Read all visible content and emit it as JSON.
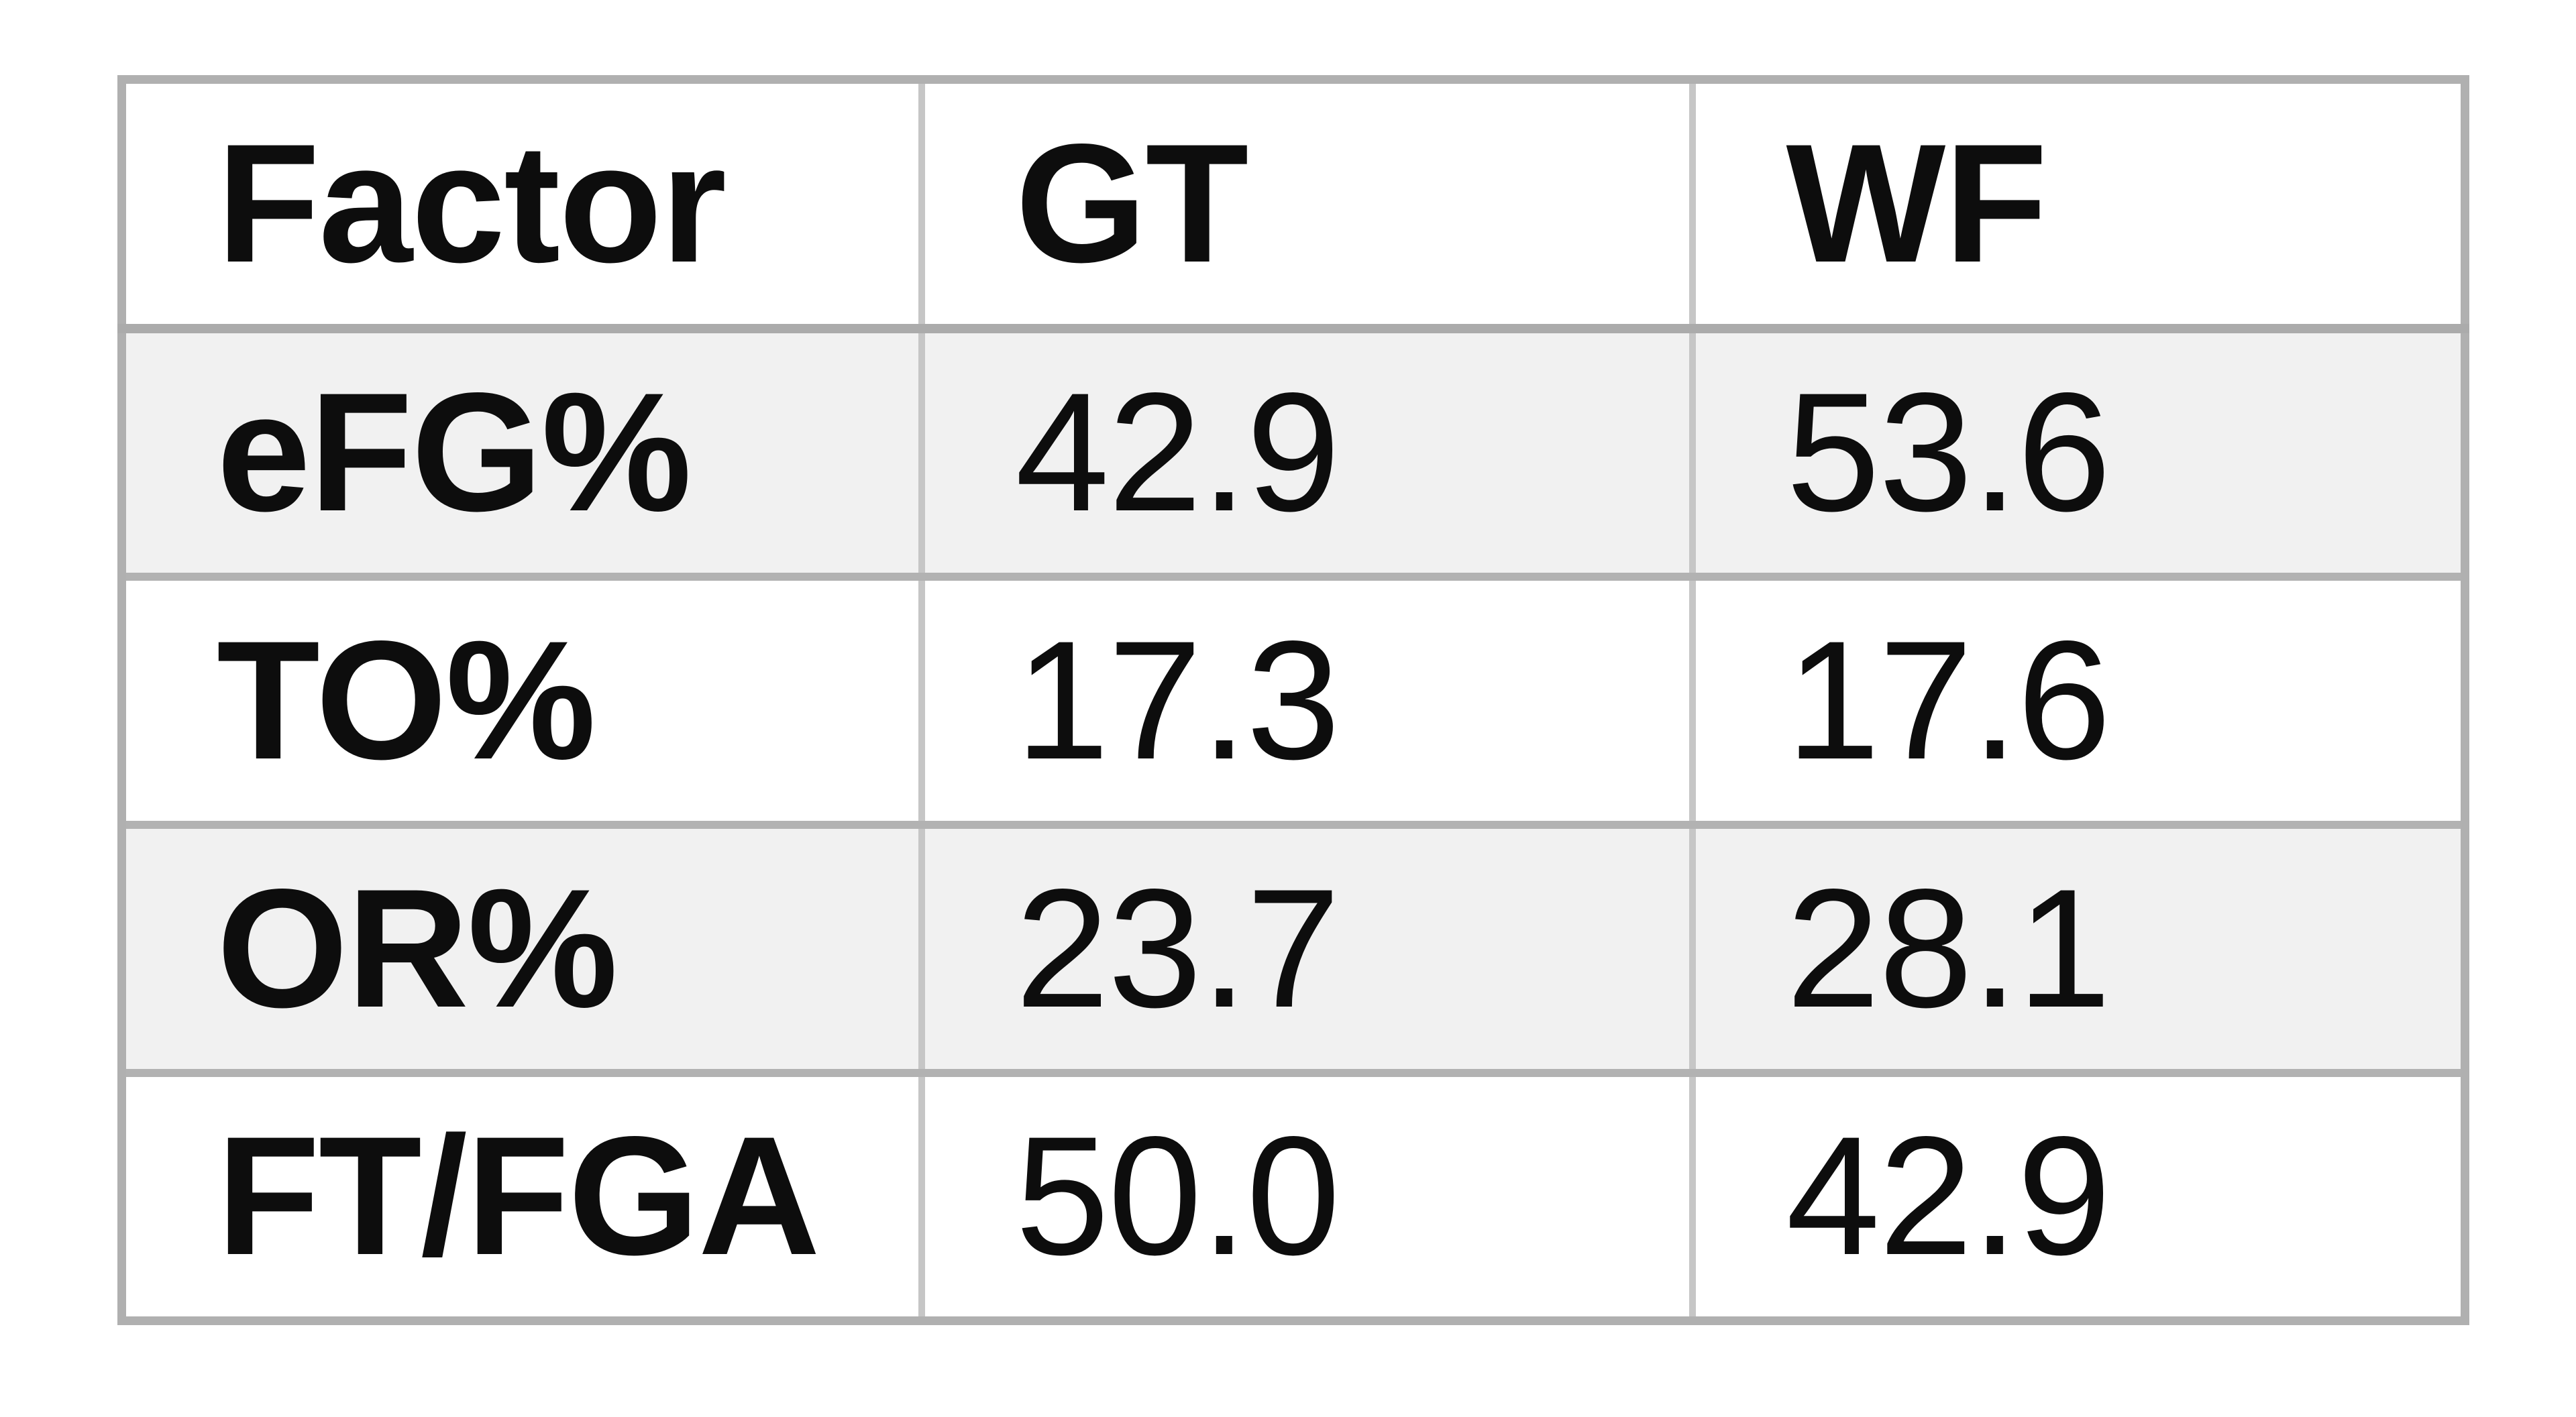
{
  "table": {
    "columns": [
      "Factor",
      "GT",
      "WF"
    ],
    "rows": [
      [
        "eFG%",
        "42.9",
        "53.6"
      ],
      [
        "TO%",
        "17.3",
        "17.6"
      ],
      [
        "OR%",
        "23.7",
        "28.1"
      ],
      [
        "FT/FGA",
        "50.0",
        "42.9"
      ]
    ]
  },
  "chart_data": {
    "type": "table",
    "columns": [
      "Factor",
      "GT",
      "WF"
    ],
    "rows": [
      [
        "eFG%",
        42.9,
        53.6
      ],
      [
        "TO%",
        17.3,
        17.6
      ],
      [
        "OR%",
        23.7,
        28.1
      ],
      [
        "FT/FGA",
        50.0,
        42.9
      ]
    ]
  },
  "colors": {
    "background": "#ffffff",
    "row_stripe": "#f1f1f1",
    "border_h": "#b2b2b2",
    "border_v": "#c6c6c6",
    "border_outer": "#b0b0b0",
    "border_header": "#ababab",
    "text": "#0d0d0d"
  }
}
